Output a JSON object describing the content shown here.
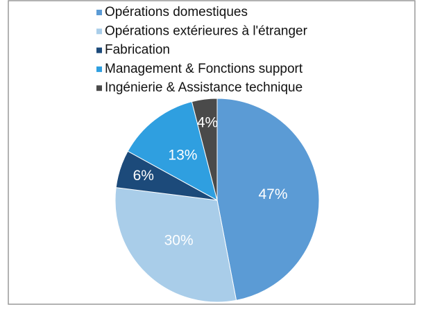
{
  "chart_data": {
    "type": "pie",
    "categories": [
      "Opérations domestiques",
      "Opérations extérieures à l'étranger",
      "Fabrication",
      "Management & Fonctions support",
      "Ingénierie & Assistance technique"
    ],
    "values": [
      47,
      30,
      6,
      13,
      4
    ],
    "value_labels": [
      "47%",
      "30%",
      "6%",
      "13%",
      "4%"
    ],
    "colors": [
      "#5b9bd5",
      "#a9cde9",
      "#1c4a7a",
      "#2f9fe0",
      "#4a4a4a"
    ],
    "legend": "top"
  }
}
